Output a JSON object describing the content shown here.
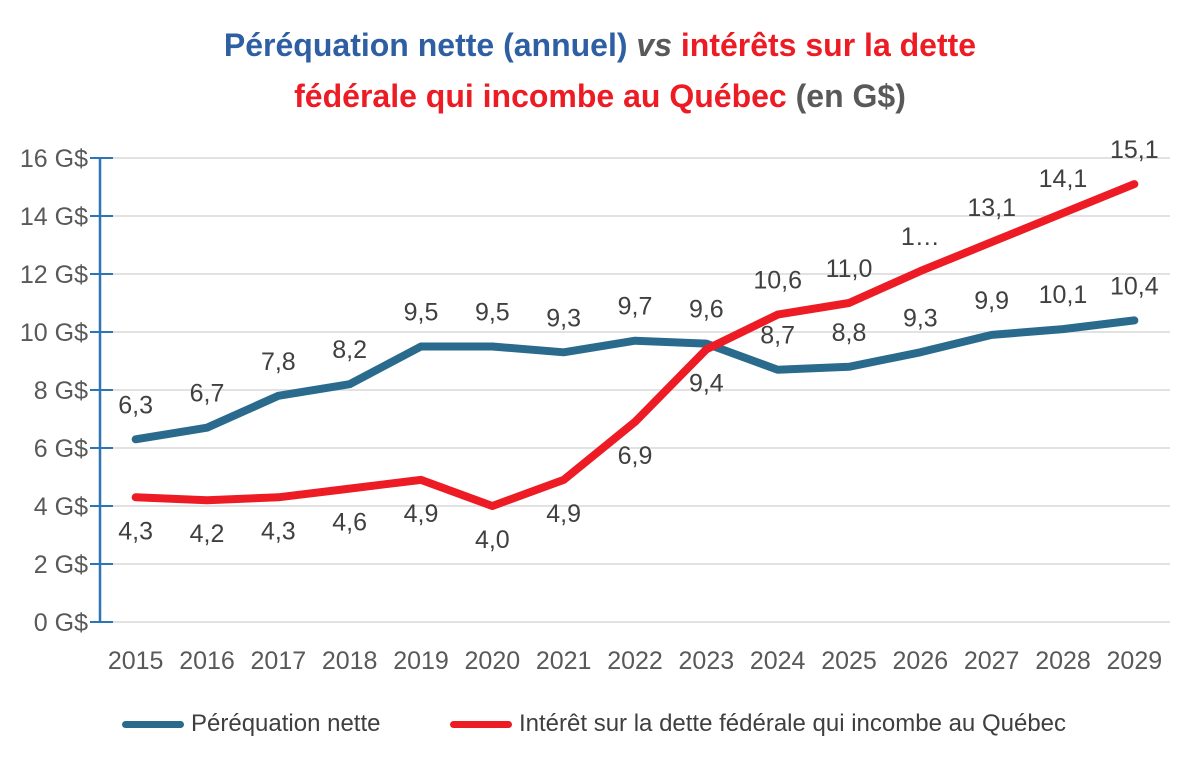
{
  "title": {
    "full": "Péréquation nette (annuel) vs intérêts sur la dette fédérale qui incombe au Québec (en G$)",
    "line1_blue": "Péréquation nette (annuel) ",
    "line1_vs": "vs",
    "line1_red": " intérêts sur la dette",
    "line2_red": "fédérale qui incombe au Québec ",
    "line2_unit": "(en G$)"
  },
  "colors": {
    "title_blue": "#2E5FA3",
    "title_red": "#ED1B23",
    "title_gray": "#595959",
    "series_blue": "#2A6B8D",
    "series_red": "#ED1C24",
    "axis_blue": "#2E75B6",
    "gridline": "#D9D9D9",
    "data_label": "#404040",
    "tick_label": "#595959"
  },
  "chart_data": {
    "type": "line",
    "title": "Péréquation nette (annuel) vs intérêts sur la dette fédérale qui incombe au Québec (en G$)",
    "unit": "G$",
    "categories": [
      "2015",
      "2016",
      "2017",
      "2018",
      "2019",
      "2020",
      "2021",
      "2022",
      "2023",
      "2024",
      "2025",
      "2026",
      "2027",
      "2028",
      "2029"
    ],
    "series": [
      {
        "name": "Péréquation nette",
        "color_key": "series_blue",
        "values": [
          6.3,
          6.7,
          7.8,
          8.2,
          9.5,
          9.5,
          9.3,
          9.7,
          9.6,
          8.7,
          8.8,
          9.3,
          9.9,
          10.1,
          10.4
        ],
        "labels": [
          "6,3",
          "6,7",
          "7,8",
          "8,2",
          "9,5",
          "9,5",
          "9,3",
          "9,7",
          "9,6",
          "8,7",
          "8,8",
          "9,3",
          "9,9",
          "10,1",
          "10,4"
        ],
        "label_pos": [
          "above",
          "above",
          "above",
          "above",
          "above",
          "above",
          "above",
          "above",
          "above",
          "above",
          "above",
          "above",
          "above",
          "above",
          "above"
        ]
      },
      {
        "name": "Intérêt sur la dette fédérale qui incombe au Québec",
        "color_key": "series_red",
        "values": [
          4.3,
          4.2,
          4.3,
          4.6,
          4.9,
          4.0,
          4.9,
          6.9,
          9.4,
          10.6,
          11.0,
          12.1,
          13.1,
          14.1,
          15.1
        ],
        "labels": [
          "4,3",
          "4,2",
          "4,3",
          "4,6",
          "4,9",
          "4,0",
          "4,9",
          "6,9",
          "9,4",
          "10,6",
          "11,0",
          "1…",
          "13,1",
          "14,1",
          "15,1"
        ],
        "label_pos": [
          "below",
          "below",
          "below",
          "below",
          "below",
          "below",
          "below",
          "below",
          "below",
          "above",
          "above",
          "above",
          "above",
          "above",
          "above"
        ]
      }
    ],
    "yticks": [
      {
        "value": 0,
        "label": "0 G$"
      },
      {
        "value": 2,
        "label": "2 G$"
      },
      {
        "value": 4,
        "label": "4 G$"
      },
      {
        "value": 6,
        "label": "6 G$"
      },
      {
        "value": 8,
        "label": "8 G$"
      },
      {
        "value": 10,
        "label": "10 G$"
      },
      {
        "value": 12,
        "label": "12 G$"
      },
      {
        "value": 14,
        "label": "14 G$"
      },
      {
        "value": 16,
        "label": "16 G$"
      }
    ],
    "ylim": [
      0,
      16
    ],
    "grid": true,
    "legend_position": "bottom"
  }
}
